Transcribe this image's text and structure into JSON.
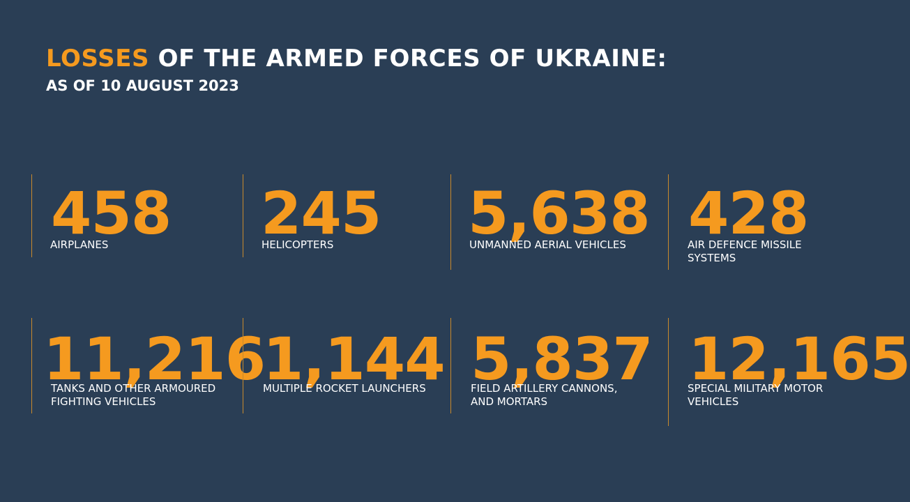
{
  "title": {
    "accent": "LOSSES",
    "rest": "OF THE ARMED FORCES OF UKRAINE:"
  },
  "subtitle": "AS OF 10 AUGUST 2023",
  "colors": {
    "background": "#2a3e55",
    "accent": "#f59a1f",
    "text": "#ffffff",
    "divider": "#c98a2c"
  },
  "stats": [
    {
      "value": "458",
      "label": "AIRPLANES"
    },
    {
      "value": "245",
      "label": "HELICOPTERS"
    },
    {
      "value": "5,638",
      "label": "UNMANNED AERIAL VEHICLES"
    },
    {
      "value": "428",
      "label": "AIR DEFENCE MISSILE SYSTEMS"
    },
    {
      "value": "11,216",
      "label": "TANKS AND OTHER ARMOURED FIGHTING VEHICLES"
    },
    {
      "value": "1,144",
      "label": "MULTIPLE ROCKET LAUNCHERS"
    },
    {
      "value": "5,837",
      "label": "FIELD ARTILLERY CANNONS, AND MORTARS"
    },
    {
      "value": "12,165",
      "label": "SPECIAL MILITARY MOTOR VEHICLES"
    }
  ]
}
